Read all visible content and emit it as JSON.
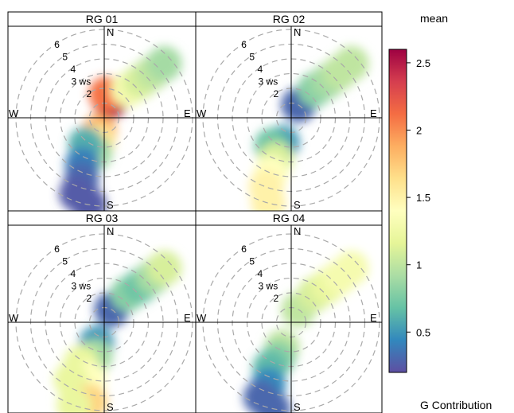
{
  "chart_data": {
    "type": "heatmap",
    "subtype": "polar-plot",
    "panels": [
      {
        "title": "RG 01",
        "ring_labels": [
          "2",
          "3 ws",
          "4",
          "5",
          "6"
        ],
        "directions": [
          "N",
          "E",
          "S",
          "W"
        ],
        "blobs": [
          {
            "ws": 1.2,
            "deg": 20,
            "val": 2.55
          },
          {
            "ws": 1.6,
            "deg": 5,
            "val": 2.1
          },
          {
            "ws": 1.0,
            "deg": 200,
            "val": 1.9
          },
          {
            "ws": 1.6,
            "deg": 195,
            "val": 1.6
          },
          {
            "ws": 2.5,
            "deg": 195,
            "val": 0.9
          },
          {
            "ws": 2.2,
            "deg": 215,
            "val": 0.6
          },
          {
            "ws": 3.5,
            "deg": 205,
            "val": 0.4
          },
          {
            "ws": 4.5,
            "deg": 200,
            "val": 0.3
          },
          {
            "ws": 5.5,
            "deg": 200,
            "val": 0.25
          },
          {
            "ws": 6.0,
            "deg": 190,
            "val": 0.25
          },
          {
            "ws": 2.5,
            "deg": 40,
            "val": 1.3
          },
          {
            "ws": 3.5,
            "deg": 45,
            "val": 1.1
          },
          {
            "ws": 4.5,
            "deg": 47,
            "val": 1.0
          },
          {
            "ws": 5.5,
            "deg": 48,
            "val": 0.9
          }
        ]
      },
      {
        "title": "RG 02",
        "ring_labels": [
          "2",
          "3 ws",
          "4",
          "5",
          "6"
        ],
        "directions": [
          "N",
          "E",
          "S",
          "W"
        ],
        "blobs": [
          {
            "ws": 1.0,
            "deg": 30,
            "val": 0.3
          },
          {
            "ws": 1.8,
            "deg": 200,
            "val": 0.5
          },
          {
            "ws": 2.3,
            "deg": 215,
            "val": 0.7
          },
          {
            "ws": 3.0,
            "deg": 200,
            "val": 1.1
          },
          {
            "ws": 4.0,
            "deg": 200,
            "val": 1.4
          },
          {
            "ws": 5.0,
            "deg": 200,
            "val": 1.5
          },
          {
            "ws": 6.0,
            "deg": 195,
            "val": 1.5
          },
          {
            "ws": 2.5,
            "deg": 40,
            "val": 0.8
          },
          {
            "ws": 3.5,
            "deg": 45,
            "val": 0.9
          },
          {
            "ws": 4.5,
            "deg": 47,
            "val": 1.0
          },
          {
            "ws": 5.5,
            "deg": 48,
            "val": 1.0
          }
        ]
      },
      {
        "title": "RG 03",
        "ring_labels": [
          "2",
          "3 ws",
          "4",
          "5",
          "6"
        ],
        "directions": [
          "N",
          "E",
          "S",
          "W"
        ],
        "blobs": [
          {
            "ws": 1.0,
            "deg": 30,
            "val": 0.3
          },
          {
            "ws": 1.5,
            "deg": 200,
            "val": 0.5
          },
          {
            "ws": 2.4,
            "deg": 195,
            "val": 0.9
          },
          {
            "ws": 3.2,
            "deg": 210,
            "val": 1.2
          },
          {
            "ws": 4.0,
            "deg": 195,
            "val": 1.4
          },
          {
            "ws": 4.5,
            "deg": 210,
            "val": 1.2
          },
          {
            "ws": 5.5,
            "deg": 190,
            "val": 1.7
          },
          {
            "ws": 6.0,
            "deg": 200,
            "val": 1.2
          },
          {
            "ws": 2.5,
            "deg": 40,
            "val": 0.8
          },
          {
            "ws": 3.5,
            "deg": 45,
            "val": 0.7
          },
          {
            "ws": 4.5,
            "deg": 47,
            "val": 0.9
          },
          {
            "ws": 5.5,
            "deg": 48,
            "val": 1.1
          }
        ]
      },
      {
        "title": "RG 04",
        "ring_labels": [
          "2",
          "3 ws",
          "4",
          "5",
          "6"
        ],
        "directions": [
          "N",
          "E",
          "S",
          "W"
        ],
        "blobs": [
          {
            "ws": 1.0,
            "deg": 30,
            "val": 1.0
          },
          {
            "ws": 1.8,
            "deg": 200,
            "val": 1.0
          },
          {
            "ws": 2.6,
            "deg": 200,
            "val": 0.8
          },
          {
            "ws": 3.4,
            "deg": 205,
            "val": 0.65
          },
          {
            "ws": 4.5,
            "deg": 200,
            "val": 0.45
          },
          {
            "ws": 5.5,
            "deg": 202,
            "val": 0.3
          },
          {
            "ws": 6.0,
            "deg": 192,
            "val": 0.3
          },
          {
            "ws": 2.5,
            "deg": 40,
            "val": 1.1
          },
          {
            "ws": 3.5,
            "deg": 45,
            "val": 1.2
          },
          {
            "ws": 4.5,
            "deg": 47,
            "val": 1.3
          },
          {
            "ws": 5.5,
            "deg": 48,
            "val": 1.3
          }
        ]
      }
    ],
    "colorbar": {
      "title": "mean",
      "xlabel": "G Contribution",
      "range": [
        0.2,
        2.6
      ],
      "ticks": [
        0.5,
        1,
        1.5,
        2,
        2.5
      ],
      "tick_labels": [
        "0.5",
        "1",
        "1.5",
        "2",
        "2.5"
      ],
      "colors": [
        "#5e4fa2",
        "#3288bd",
        "#66c2a5",
        "#abdda4",
        "#e6f598",
        "#ffffbf",
        "#fee08b",
        "#fdae61",
        "#f46d43",
        "#d53e4f",
        "#9e0142"
      ]
    },
    "ws_max": 6.6,
    "grid": true
  }
}
